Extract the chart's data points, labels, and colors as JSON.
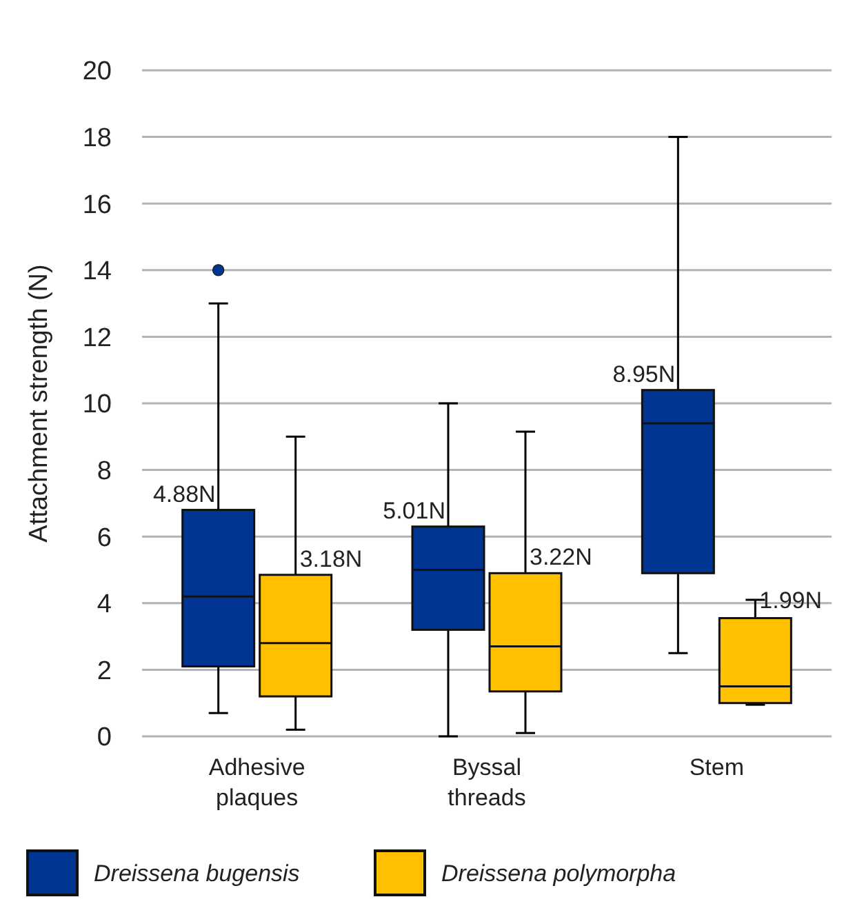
{
  "chart_data": {
    "type": "box",
    "ylabel": "Attachment strength (N)",
    "categories": [
      "Adhesive plaques",
      "Byssal threads",
      "Stem"
    ],
    "series": [
      {
        "name": "Dreissena bugensis",
        "color": "#003594",
        "boxes": [
          {
            "low": 0.7,
            "q1": 2.1,
            "median": 4.2,
            "q3": 6.8,
            "high": 13,
            "outliers": [
              14
            ]
          },
          {
            "low": 0,
            "q1": 3.2,
            "median": 5.0,
            "q3": 6.3,
            "high": 10
          },
          {
            "low": 2.5,
            "q1": 4.9,
            "median": 9.4,
            "q3": 10.4,
            "high": 18
          }
        ]
      },
      {
        "name": "Dreissena polymorpha",
        "color": "#ffc000",
        "boxes": [
          {
            "low": 0.2,
            "q1": 1.2,
            "median": 2.8,
            "q3": 4.85,
            "high": 9
          },
          {
            "low": 0.1,
            "q1": 1.35,
            "median": 2.7,
            "q3": 4.9,
            "high": 9.15
          },
          {
            "low": 0.95,
            "q1": 1.0,
            "median": 1.5,
            "q3": 3.55,
            "high": 4.1
          }
        ]
      }
    ],
    "annotations": [
      "4.88N",
      "3.18N",
      "5.01N",
      "3.22N",
      "8.95N",
      "1.99N"
    ],
    "ylim": [
      0,
      20
    ],
    "yticks": [
      0,
      2,
      4,
      6,
      8,
      10,
      12,
      14,
      16,
      18,
      20
    ],
    "grid": "y",
    "legend": "bottom"
  }
}
